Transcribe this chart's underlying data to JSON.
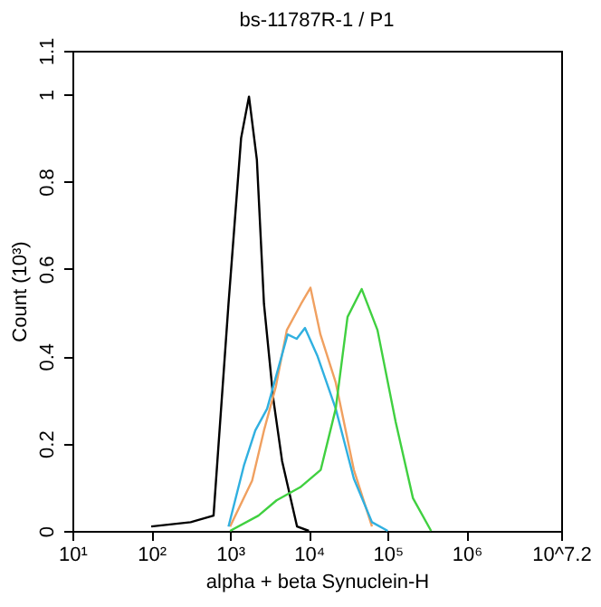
{
  "chart_data": {
    "type": "line",
    "title": "bs-11787R-1 / P1",
    "xlabel": "alpha + beta Synuclein-H",
    "ylabel": "Count (10³)",
    "log": "x",
    "grid": false,
    "legend": false,
    "marker": "none",
    "line_style": "solid",
    "xlim": [
      10,
      15848932
    ],
    "xticks": [
      {
        "value": 10,
        "label": "10¹"
      },
      {
        "value": 100,
        "label": "10²"
      },
      {
        "value": 1000,
        "label": "10³"
      },
      {
        "value": 10000,
        "label": "10⁴"
      },
      {
        "value": 100000,
        "label": "10⁵"
      },
      {
        "value": 1000000,
        "label": "10⁶"
      },
      {
        "value": 15848932,
        "label": "10^7.2"
      }
    ],
    "ylim": [
      0,
      1.1
    ],
    "yticks": [
      0,
      0.2,
      0.4,
      0.6,
      0.8,
      1,
      1.1
    ],
    "series": [
      {
        "color": "#000000",
        "x": [
          100,
          316,
          617,
          955,
          1380,
          1738,
          2188,
          2692,
          3548,
          4571,
          7079,
          10000
        ],
        "values": [
          0.01,
          0.02,
          0.035,
          0.52,
          0.9,
          0.995,
          0.85,
          0.52,
          0.3,
          0.16,
          0.01,
          0
        ]
      },
      {
        "color": "#f0a060",
        "x": [
          1000,
          1905,
          2692,
          3802,
          5248,
          7943,
          10470,
          14000,
          21880,
          37150,
          63100
        ],
        "values": [
          0.01,
          0.115,
          0.23,
          0.33,
          0.46,
          0.52,
          0.557,
          0.45,
          0.34,
          0.14,
          0.01
        ]
      },
      {
        "color": "#30b0e0",
        "x": [
          955,
          1500,
          2089,
          2951,
          5370,
          7000,
          8913,
          12880,
          21880,
          37150,
          63100,
          100000
        ],
        "values": [
          0.01,
          0.15,
          0.23,
          0.28,
          0.45,
          0.44,
          0.465,
          0.4,
          0.28,
          0.12,
          0.02,
          0
        ]
      },
      {
        "color": "#40d040",
        "x": [
          1000,
          2291,
          3890,
          7762,
          14130,
          21880,
          30900,
          46770,
          74130,
          125900,
          208900,
          354800
        ],
        "values": [
          0,
          0.035,
          0.07,
          0.1,
          0.14,
          0.28,
          0.49,
          0.554,
          0.46,
          0.25,
          0.075,
          0
        ]
      }
    ]
  }
}
